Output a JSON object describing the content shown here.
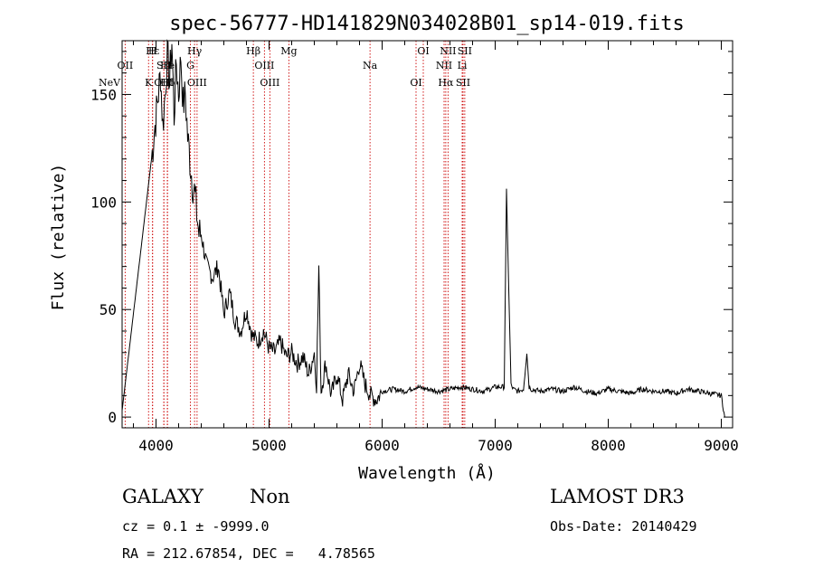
{
  "chart_data": {
    "type": "line",
    "title": "spec-56777-HD141829N034028B01_sp14-019.fits",
    "xlabel": "Wavelength (Å)",
    "ylabel": "Flux (relative)",
    "xlim": [
      3700,
      9100
    ],
    "ylim": [
      -5,
      175
    ],
    "x_ticks": [
      4000,
      5000,
      6000,
      7000,
      8000,
      9000
    ],
    "y_ticks": [
      0,
      50,
      100,
      150
    ],
    "grid": false,
    "line_color": "#000000",
    "marker_color": "#cc0000",
    "series": [
      {
        "x": [
          3700,
          3960,
          4010,
          4040,
          4060,
          4080,
          4100,
          4120,
          4140,
          4160,
          4180,
          4200,
          4220,
          4240,
          4260,
          4280,
          4300,
          4320,
          4340,
          4360,
          4380,
          4400,
          4450,
          4500,
          4550,
          4600,
          4650,
          4700,
          4750,
          4800,
          4850,
          4900,
          4950,
          5000,
          5050,
          5100,
          5150,
          5200,
          5250,
          5300,
          5350,
          5400,
          5420,
          5440,
          5460,
          5500,
          5550,
          5600,
          5650,
          5700,
          5750,
          5800,
          5850,
          5900,
          5950,
          6000,
          6100,
          6200,
          6300,
          6400,
          6500,
          6600,
          6700,
          6800,
          6900,
          7000,
          7080,
          7100,
          7120,
          7140,
          7160,
          7200,
          7250,
          7280,
          7300,
          7320,
          7400,
          7500,
          7600,
          7700,
          7800,
          7900,
          8000,
          8100,
          8200,
          8300,
          8400,
          8500,
          8600,
          8700,
          8800,
          8900,
          9000,
          9030
        ],
        "y": [
          3,
          120,
          145,
          160,
          135,
          150,
          170,
          155,
          175,
          140,
          165,
          150,
          168,
          145,
          150,
          130,
          120,
          110,
          105,
          95,
          85,
          85,
          70,
          65,
          70,
          48,
          58,
          45,
          40,
          50,
          38,
          35,
          40,
          32,
          30,
          35,
          28,
          30,
          25,
          28,
          20,
          30,
          15,
          70,
          12,
          25,
          10,
          20,
          8,
          20,
          12,
          25,
          15,
          10,
          8,
          12,
          13,
          12,
          14,
          13,
          12,
          13,
          14,
          13,
          12,
          14,
          14,
          105,
          60,
          15,
          13,
          12,
          13,
          30,
          14,
          13,
          12,
          13,
          12,
          14,
          12,
          11,
          13,
          12,
          11,
          13,
          12,
          12,
          11,
          13,
          12,
          11,
          10,
          0
        ]
      }
    ],
    "lines": [
      {
        "name": "NeV",
        "x": 3426
      },
      {
        "name": "OII",
        "x": 3727
      },
      {
        "name": "OIII",
        "x": 4070
      },
      {
        "name": "Hε",
        "x": 3970
      },
      {
        "name": "He",
        "x": 4100
      },
      {
        "name": "K",
        "x": 3934
      },
      {
        "name": "H",
        "x": 3969
      },
      {
        "name": "SII",
        "x": 4069
      },
      {
        "name": "Hδ",
        "x": 4102
      },
      {
        "name": "Hγ",
        "x": 4341
      },
      {
        "name": "G",
        "x": 4304
      },
      {
        "name": "OIII",
        "x": 4363
      },
      {
        "name": "Hβ",
        "x": 4861
      },
      {
        "name": "OIII",
        "x": 4959
      },
      {
        "name": "OIII",
        "x": 5007
      },
      {
        "name": "Mg",
        "x": 5175
      },
      {
        "name": "Na",
        "x": 5893
      },
      {
        "name": "OI",
        "x": 6300
      },
      {
        "name": "OI",
        "x": 6364
      },
      {
        "name": "NII",
        "x": 6548
      },
      {
        "name": "Hα",
        "x": 6563
      },
      {
        "name": "NII",
        "x": 6583
      },
      {
        "name": "Li",
        "x": 6708
      },
      {
        "name": "SII",
        "x": 6716
      },
      {
        "name": "SII",
        "x": 6731
      }
    ]
  },
  "info": {
    "class_label": "GALAXY",
    "subclass_label": "Non",
    "survey_label": "LAMOST DR3",
    "cz_line": "cz = 0.1 ± -9999.0",
    "obs_date_line": "Obs-Date: 20140429",
    "coords_line": "RA = 212.67854, DEC =   4.78565"
  }
}
